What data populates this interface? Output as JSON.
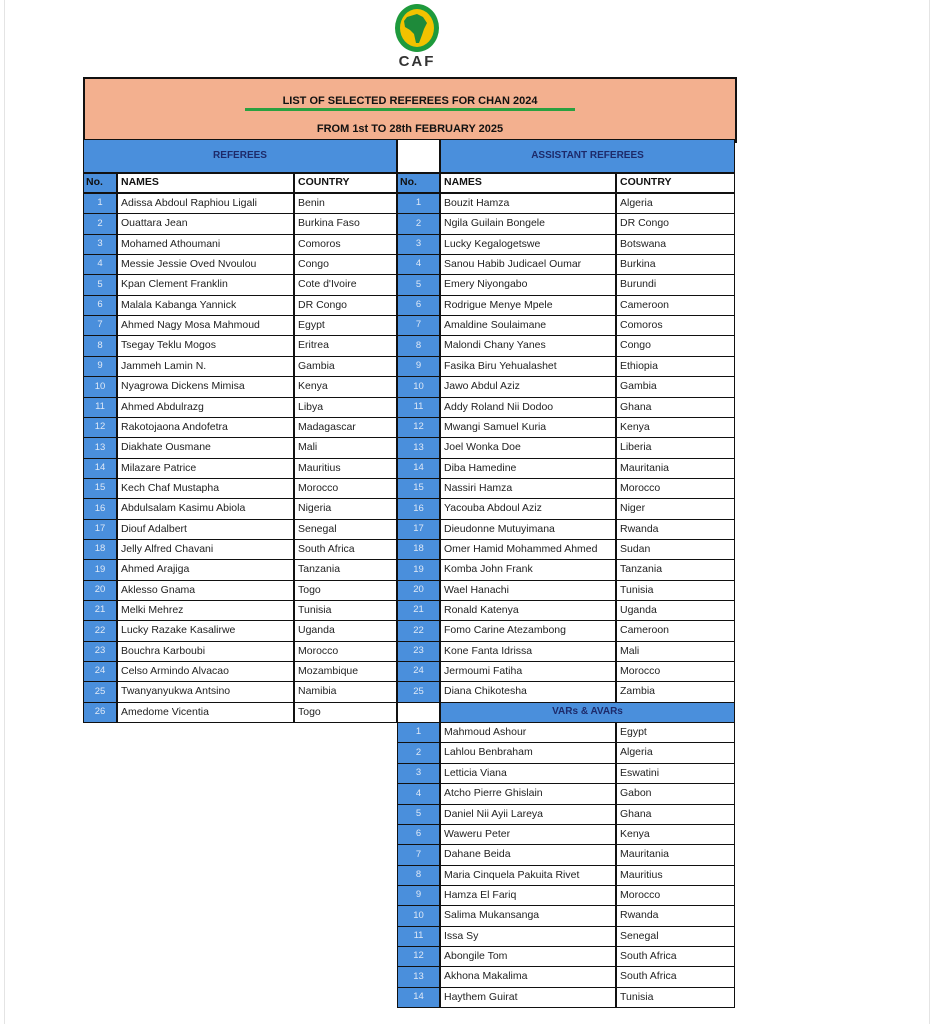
{
  "logo": {
    "text": "CAF",
    "colors": {
      "ring": "#1e9a3c",
      "inner": "#f2c200",
      "africa": "#1e8a3a"
    }
  },
  "title": "LIST OF SELECTED REFEREES FOR CHAN 2024",
  "subtitle": "FROM 1st  TO 28th FEBRUARY 2025",
  "colors": {
    "header_bg": "#f3b08f",
    "section_bg": "#4a8fdc",
    "underline": "#2aa040"
  },
  "referees": {
    "section_label": "REFEREES",
    "headers": {
      "no": "No.",
      "name": "NAMES",
      "country": "COUNTRY"
    },
    "rows": [
      {
        "no": "1",
        "name": "Adissa Abdoul Raphiou Ligali",
        "country": "Benin"
      },
      {
        "no": "2",
        "name": "Ouattara Jean",
        "country": "Burkina Faso"
      },
      {
        "no": "3",
        "name": "Mohamed Athoumani",
        "country": "Comoros"
      },
      {
        "no": "4",
        "name": "Messie Jessie Oved Nvoulou",
        "country": "Congo"
      },
      {
        "no": "5",
        "name": "Kpan Clement Franklin",
        "country": "Cote d'Ivoire"
      },
      {
        "no": "6",
        "name": "Malala Kabanga Yannick",
        "country": "DR Congo"
      },
      {
        "no": "7",
        "name": "Ahmed Nagy Mosa Mahmoud",
        "country": "Egypt"
      },
      {
        "no": "8",
        "name": "Tsegay Teklu Mogos",
        "country": "Eritrea"
      },
      {
        "no": "9",
        "name": "Jammeh Lamin N.",
        "country": "Gambia"
      },
      {
        "no": "10",
        "name": "Nyagrowa Dickens Mimisa",
        "country": "Kenya"
      },
      {
        "no": "11",
        "name": "Ahmed Abdulrazg",
        "country": "Libya"
      },
      {
        "no": "12",
        "name": "Rakotojaona Andofetra",
        "country": "Madagascar"
      },
      {
        "no": "13",
        "name": "Diakhate Ousmane",
        "country": "Mali"
      },
      {
        "no": "14",
        "name": "Milazare Patrice",
        "country": "Mauritius"
      },
      {
        "no": "15",
        "name": "Kech Chaf Mustapha",
        "country": "Morocco"
      },
      {
        "no": "16",
        "name": "Abdulsalam Kasimu Abiola",
        "country": "Nigeria"
      },
      {
        "no": "17",
        "name": "Diouf Adalbert",
        "country": "Senegal"
      },
      {
        "no": "18",
        "name": "Jelly Alfred Chavani",
        "country": "South Africa"
      },
      {
        "no": "19",
        "name": "Ahmed Arajiga",
        "country": "Tanzania"
      },
      {
        "no": "20",
        "name": "Aklesso Gnama",
        "country": "Togo"
      },
      {
        "no": "21",
        "name": "Melki Mehrez",
        "country": "Tunisia"
      },
      {
        "no": "22",
        "name": "Lucky Razake Kasalirwe",
        "country": "Uganda"
      },
      {
        "no": "23",
        "name": "Bouchra Karboubi",
        "country": "Morocco"
      },
      {
        "no": "24",
        "name": "Celso Armindo Alvacao",
        "country": "Mozambique"
      },
      {
        "no": "25",
        "name": "Twanyanyukwa Antsino",
        "country": "Namibia"
      },
      {
        "no": "26",
        "name": "Amedome Vicentia",
        "country": "Togo"
      }
    ]
  },
  "assistants": {
    "section_label": "ASSISTANT REFEREES",
    "headers": {
      "no": "No.",
      "name": "NAMES",
      "country": "COUNTRY"
    },
    "rows": [
      {
        "no": "1",
        "name": "Bouzit Hamza",
        "country": "Algeria"
      },
      {
        "no": "2",
        "name": "Ngila Guilain Bongele",
        "country": "DR Congo"
      },
      {
        "no": "3",
        "name": "Lucky Kegalogetswe",
        "country": "Botswana"
      },
      {
        "no": "4",
        "name": "Sanou Habib Judicael Oumar",
        "country": "Burkina"
      },
      {
        "no": "5",
        "name": "Emery Niyongabo",
        "country": "Burundi"
      },
      {
        "no": "6",
        "name": "Rodrigue Menye Mpele",
        "country": "Cameroon"
      },
      {
        "no": "7",
        "name": "Amaldine Soulaimane",
        "country": "Comoros"
      },
      {
        "no": "8",
        "name": "Malondi Chany Yanes",
        "country": "Congo"
      },
      {
        "no": "9",
        "name": "Fasika Biru Yehualashet",
        "country": "Ethiopia"
      },
      {
        "no": "10",
        "name": "Jawo Abdul Aziz",
        "country": "Gambia"
      },
      {
        "no": "11",
        "name": "Addy Roland Nii Dodoo",
        "country": "Ghana"
      },
      {
        "no": "12",
        "name": "Mwangi Samuel Kuria",
        "country": "Kenya"
      },
      {
        "no": "13",
        "name": "Joel Wonka Doe",
        "country": "Liberia"
      },
      {
        "no": "14",
        "name": "Diba Hamedine",
        "country": "Mauritania"
      },
      {
        "no": "15",
        "name": "Nassiri Hamza",
        "country": "Morocco"
      },
      {
        "no": "16",
        "name": "Yacouba Abdoul Aziz",
        "country": "Niger"
      },
      {
        "no": "17",
        "name": "Dieudonne Mutuyimana",
        "country": "Rwanda"
      },
      {
        "no": "18",
        "name": "Omer Hamid Mohammed Ahmed",
        "country": "Sudan"
      },
      {
        "no": "19",
        "name": "Komba John Frank",
        "country": "Tanzania"
      },
      {
        "no": "20",
        "name": "Wael Hanachi",
        "country": "Tunisia"
      },
      {
        "no": "21",
        "name": "Ronald Katenya",
        "country": "Uganda"
      },
      {
        "no": "22",
        "name": "Fomo Carine Atezambong",
        "country": "Cameroon"
      },
      {
        "no": "23",
        "name": "Kone Fanta Idrissa",
        "country": "Mali"
      },
      {
        "no": "24",
        "name": "Jermoumi Fatiha",
        "country": "Morocco"
      },
      {
        "no": "25",
        "name": "Diana Chikotesha",
        "country": "Zambia"
      }
    ]
  },
  "vars": {
    "section_label": "VARs & AVARs",
    "rows": [
      {
        "no": "1",
        "name": "Mahmoud Ashour",
        "country": "Egypt"
      },
      {
        "no": "2",
        "name": "Lahlou Benbraham",
        "country": "Algeria"
      },
      {
        "no": "3",
        "name": "Letticia Viana",
        "country": "Eswatini"
      },
      {
        "no": "4",
        "name": "Atcho Pierre Ghislain",
        "country": "Gabon"
      },
      {
        "no": "5",
        "name": "Daniel Nii Ayii Lareya",
        "country": "Ghana"
      },
      {
        "no": "6",
        "name": "Waweru Peter",
        "country": "Kenya"
      },
      {
        "no": "7",
        "name": "Dahane Beida",
        "country": "Mauritania"
      },
      {
        "no": "8",
        "name": "Maria Cinquela Pakuita Rivet",
        "country": "Mauritius"
      },
      {
        "no": "9",
        "name": "Hamza El Fariq",
        "country": "Morocco"
      },
      {
        "no": "10",
        "name": "Salima Mukansanga",
        "country": "Rwanda"
      },
      {
        "no": "11",
        "name": "Issa Sy",
        "country": "Senegal"
      },
      {
        "no": "12",
        "name": "Abongile Tom",
        "country": "South Africa"
      },
      {
        "no": "13",
        "name": "Akhona Makalima",
        "country": "South Africa"
      },
      {
        "no": "14",
        "name": "Haythem Guirat",
        "country": "Tunisia"
      }
    ]
  }
}
